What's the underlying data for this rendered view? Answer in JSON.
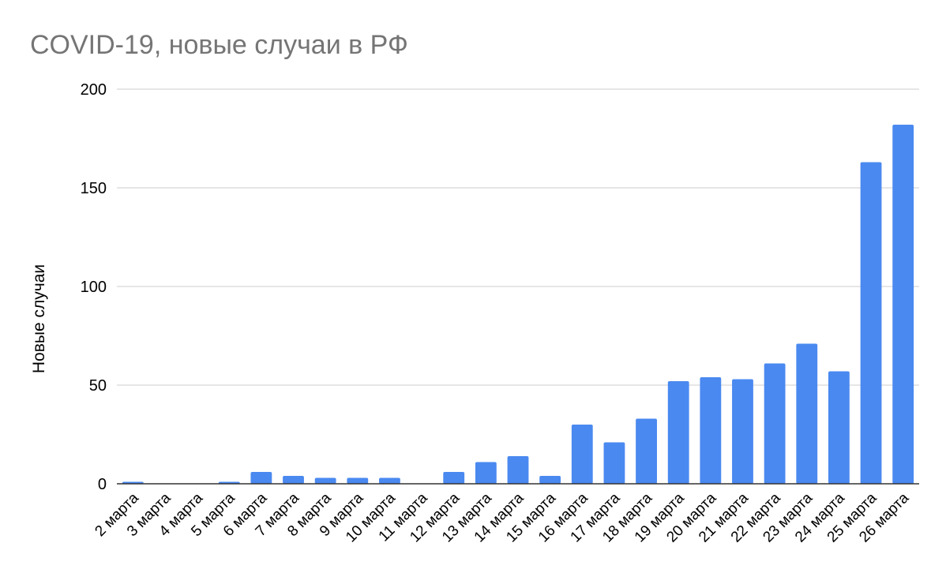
{
  "chart_data": {
    "type": "bar",
    "title": "COVID-19, новые случаи в РФ",
    "xlabel": "",
    "ylabel": "Новые случаи",
    "ylim": [
      0,
      200
    ],
    "yticks": [
      0,
      50,
      100,
      150,
      200
    ],
    "grid": true,
    "legend": "none",
    "bar_color": "#4a89f0",
    "categories": [
      "2 марта",
      "3 марта",
      "4 марта",
      "5 марта",
      "6 марта",
      "7 марта",
      "8 марта",
      "9 марта",
      "10 марта",
      "11 марта",
      "12 марта",
      "13 марта",
      "14 марта",
      "15 марта",
      "16 марта",
      "17 марта",
      "18 марта",
      "19 марта",
      "20 марта",
      "21 марта",
      "22 марта",
      "23 марта",
      "24 марта",
      "25 марта",
      "26 марта"
    ],
    "values": [
      1,
      0,
      0,
      1,
      6,
      4,
      3,
      3,
      3,
      0,
      6,
      11,
      14,
      4,
      30,
      21,
      33,
      52,
      54,
      53,
      61,
      71,
      57,
      163,
      182
    ]
  }
}
